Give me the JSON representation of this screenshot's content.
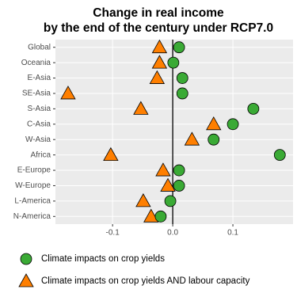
{
  "chart_data": {
    "type": "dot",
    "title": [
      "Change in real income",
      "by the end of the century under RCP7.0"
    ],
    "categories": [
      "Global",
      "Oceania",
      "E-Asia",
      "SE-Asia",
      "S-Asia",
      "C-Asia",
      "W-Asia",
      "Africa",
      "E-Europe",
      "W-Europe",
      "L-America",
      "N-America"
    ],
    "series": [
      {
        "name": "Climate impacts on crop yields",
        "color": "#3aaa35",
        "marker": "circle",
        "values": [
          0.0105,
          0.001,
          0.016,
          0.016,
          0.134,
          0.1,
          0.068,
          0.178,
          0.0105,
          0.0105,
          -0.004,
          -0.02
        ]
      },
      {
        "name": "Climate impacts on crop yields AND labour capacity",
        "color": "#ff7f00",
        "marker": "triangle",
        "values": [
          -0.022,
          -0.022,
          -0.026,
          -0.174,
          -0.053,
          0.068,
          0.032,
          -0.103,
          -0.016,
          -0.008,
          -0.049,
          -0.036
        ]
      }
    ],
    "xlim": [
      -0.195,
      0.2
    ],
    "xticks": [
      -0.1,
      {
        "value": 0,
        "label": "0.0"
      },
      0.1
    ],
    "vline": 0,
    "grid": true
  }
}
